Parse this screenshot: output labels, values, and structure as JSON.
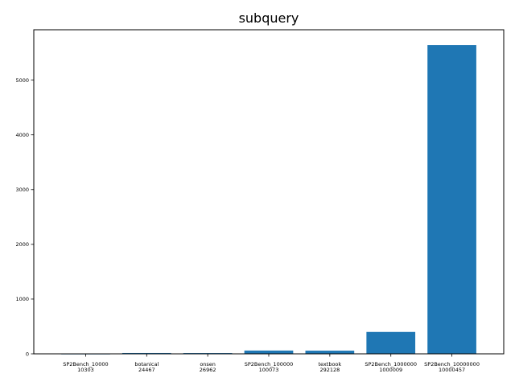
{
  "chart_data": {
    "type": "bar",
    "title": "subquery",
    "xlabel": "",
    "ylabel": "",
    "categories": [
      [
        "SP2Bench_10000",
        "10303"
      ],
      [
        "botanical",
        "24467"
      ],
      [
        "onsen",
        "26962"
      ],
      [
        "SP2Bench_100000",
        "100073"
      ],
      [
        "textbook",
        "292128"
      ],
      [
        "SP2Bench_1000000",
        "1000009"
      ],
      [
        "SP2Bench_10000000",
        "10000457"
      ]
    ],
    "values": [
      2,
      15,
      14,
      60,
      58,
      400,
      5640
    ],
    "ylim": [
      0,
      5920
    ],
    "yticks": [
      0,
      1000,
      2000,
      3000,
      4000,
      5000
    ],
    "grid": false,
    "bar_color": "#1f77b4",
    "legend": "none"
  }
}
